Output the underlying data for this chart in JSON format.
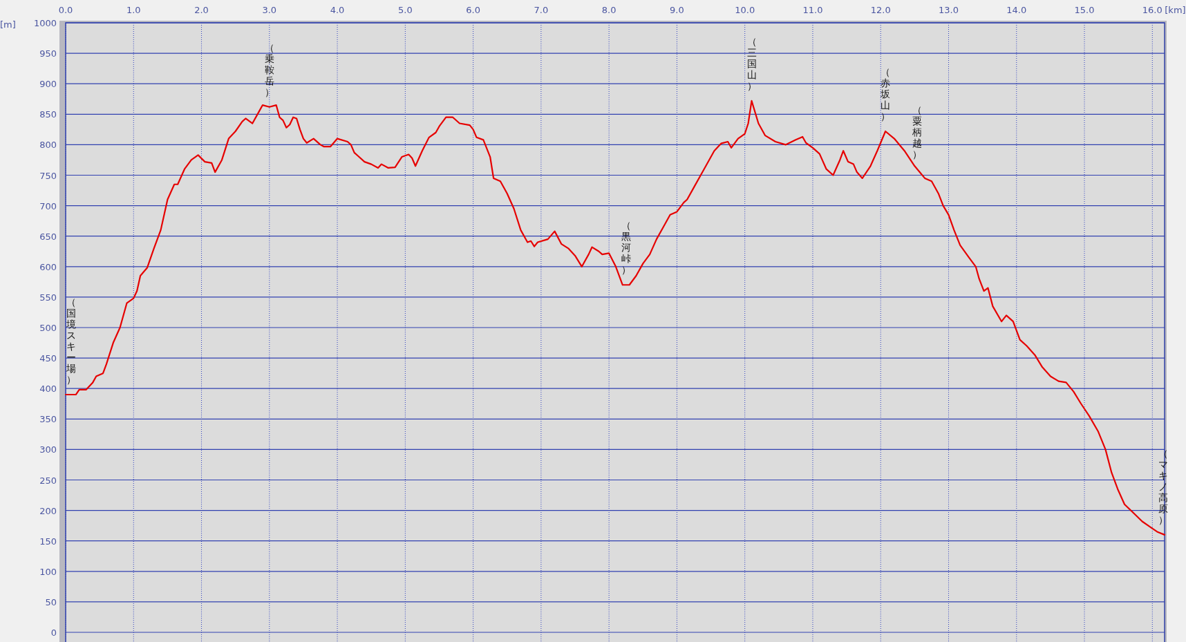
{
  "chart_data": {
    "type": "line",
    "xlabel": "[km]",
    "ylabel": "[m]",
    "xlim": [
      0,
      16.18
    ],
    "ylim": [
      0,
      1000
    ],
    "xticks": [
      {
        "value": 0,
        "label": "0.0"
      },
      {
        "value": 1,
        "label": "1.0"
      },
      {
        "value": 2,
        "label": "2.0"
      },
      {
        "value": 3,
        "label": "3.0"
      },
      {
        "value": 4,
        "label": "4.0"
      },
      {
        "value": 5,
        "label": "5.0"
      },
      {
        "value": 6,
        "label": "6.0"
      },
      {
        "value": 7,
        "label": "7.0"
      },
      {
        "value": 8,
        "label": "8.0"
      },
      {
        "value": 9,
        "label": "9.0"
      },
      {
        "value": 10,
        "label": "10.0"
      },
      {
        "value": 11,
        "label": "11.0"
      },
      {
        "value": 12,
        "label": "12.0"
      },
      {
        "value": 13,
        "label": "13.0"
      },
      {
        "value": 14,
        "label": "14.0"
      },
      {
        "value": 15,
        "label": "15.0"
      },
      {
        "value": 16,
        "label": "16.0"
      }
    ],
    "yticks": [
      0,
      50,
      100,
      150,
      200,
      250,
      300,
      350,
      400,
      450,
      500,
      550,
      600,
      650,
      700,
      750,
      800,
      850,
      900,
      950,
      1000
    ],
    "grid": true,
    "marker": "none",
    "series": [
      {
        "color": "#e60000",
        "x": [
          0,
          0.15,
          0.2,
          0.3,
          0.4,
          0.45,
          0.55,
          0.6,
          0.7,
          0.8,
          0.9,
          1.0,
          1.05,
          1.1,
          1.2,
          1.3,
          1.4,
          1.5,
          1.6,
          1.65,
          1.75,
          1.85,
          1.95,
          2.05,
          2.15,
          2.2,
          2.3,
          2.4,
          2.5,
          2.6,
          2.65,
          2.75,
          2.85,
          2.9,
          3.0,
          3.1,
          3.15,
          3.2,
          3.25,
          3.3,
          3.35,
          3.4,
          3.45,
          3.5,
          3.55,
          3.65,
          3.75,
          3.8,
          3.9,
          4.0,
          4.15,
          4.2,
          4.25,
          4.3,
          4.4,
          4.5,
          4.6,
          4.65,
          4.75,
          4.85,
          4.95,
          5.05,
          5.1,
          5.15,
          5.25,
          5.35,
          5.45,
          5.5,
          5.6,
          5.7,
          5.8,
          5.95,
          6.0,
          6.05,
          6.15,
          6.25,
          6.3,
          6.4,
          6.5,
          6.6,
          6.7,
          6.8,
          6.85,
          6.9,
          6.95,
          7.1,
          7.2,
          7.3,
          7.4,
          7.5,
          7.6,
          7.7,
          7.75,
          7.85,
          7.9,
          8.0,
          8.1,
          8.2,
          8.3,
          8.4,
          8.5,
          8.6,
          8.7,
          8.8,
          8.9,
          9.0,
          9.1,
          9.15,
          9.25,
          9.4,
          9.55,
          9.65,
          9.75,
          9.8,
          9.9,
          10.0,
          10.05,
          10.1,
          10.2,
          10.3,
          10.45,
          10.6,
          10.75,
          10.85,
          10.9,
          11.0,
          11.1,
          11.2,
          11.3,
          11.4,
          11.45,
          11.52,
          11.6,
          11.65,
          11.73,
          11.85,
          11.95,
          12.07,
          12.2,
          12.35,
          12.5,
          12.65,
          12.75,
          12.85,
          12.92,
          13.0,
          13.08,
          13.17,
          13.3,
          13.4,
          13.45,
          13.52,
          13.58,
          13.65,
          13.78,
          13.85,
          13.95,
          14.05,
          14.15,
          14.27,
          14.38,
          14.5,
          14.62,
          14.73,
          14.84,
          14.95,
          15.07,
          15.2,
          15.31,
          15.4,
          15.49,
          15.59,
          15.73,
          15.85,
          15.98,
          16.07,
          16.18
        ],
        "values": [
          390,
          390,
          398,
          398,
          410,
          420,
          425,
          440,
          475,
          500,
          540,
          548,
          560,
          585,
          598,
          630,
          660,
          710,
          735,
          735,
          760,
          775,
          783,
          772,
          770,
          755,
          775,
          810,
          822,
          838,
          843,
          835,
          855,
          865,
          862,
          865,
          845,
          840,
          828,
          833,
          845,
          843,
          825,
          810,
          803,
          810,
          800,
          797,
          797,
          810,
          805,
          800,
          787,
          782,
          772,
          768,
          762,
          768,
          762,
          763,
          780,
          784,
          778,
          765,
          790,
          812,
          820,
          830,
          845,
          845,
          835,
          832,
          825,
          812,
          808,
          780,
          745,
          740,
          720,
          695,
          660,
          640,
          642,
          633,
          640,
          645,
          658,
          637,
          630,
          618,
          600,
          620,
          632,
          625,
          620,
          622,
          600,
          570,
          570,
          585,
          605,
          620,
          645,
          665,
          685,
          690,
          705,
          710,
          730,
          760,
          790,
          802,
          805,
          795,
          810,
          818,
          835,
          872,
          835,
          815,
          805,
          800,
          808,
          813,
          803,
          795,
          785,
          760,
          750,
          775,
          790,
          772,
          768,
          755,
          745,
          765,
          790,
          822,
          810,
          790,
          765,
          745,
          740,
          720,
          700,
          685,
          660,
          635,
          615,
          600,
          580,
          560,
          565,
          535,
          510,
          520,
          510,
          480,
          470,
          455,
          435,
          420,
          412,
          410,
          395,
          375,
          355,
          330,
          300,
          262,
          235,
          210,
          195,
          182,
          172,
          165,
          160
        ]
      }
    ],
    "annotations": [
      {
        "text": "（国境スキー場）",
        "x": 0,
        "y": 390
      },
      {
        "text": "（乗鞍岳）",
        "x": 3.0,
        "y": 862
      },
      {
        "text": "（黒河峠）",
        "x": 8.25,
        "y": 570
      },
      {
        "text": "（三国山）",
        "x": 10.1,
        "y": 872
      },
      {
        "text": "（赤坂山）",
        "x": 12.07,
        "y": 822
      },
      {
        "text": "（粟柄越）",
        "x": 12.54,
        "y": 760
      },
      {
        "text": "（マキノ高原）",
        "x": 16.18,
        "y": 160
      }
    ]
  }
}
